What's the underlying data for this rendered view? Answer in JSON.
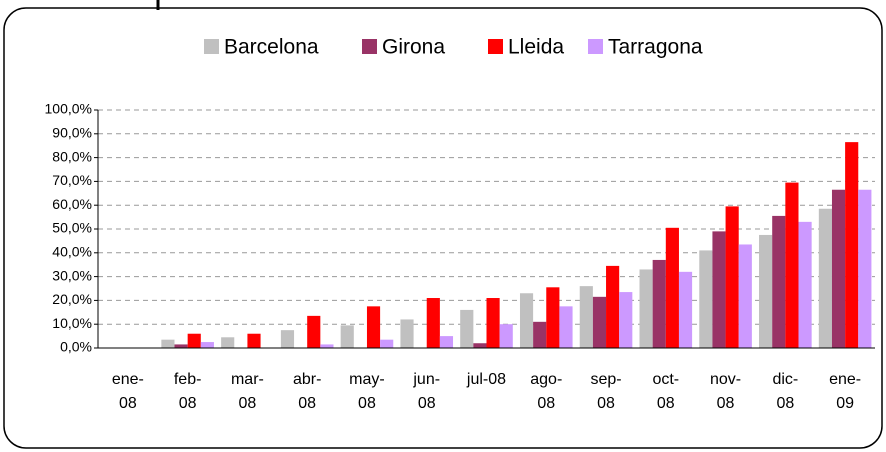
{
  "chart_data": {
    "type": "bar",
    "categories": [
      "ene-08",
      "feb-08",
      "mar-08",
      "abr-08",
      "may-08",
      "jun-08",
      "jul-08",
      "ago-08",
      "sep-08",
      "oct-08",
      "nov-08",
      "dic-08",
      "ene-09"
    ],
    "series": [
      {
        "name": "Barcelona",
        "color": "#c0c0c0",
        "values": [
          0,
          3.5,
          4.5,
          7.5,
          9.5,
          12,
          16,
          23,
          26,
          33,
          41,
          47.5,
          58.5
        ]
      },
      {
        "name": "Girona",
        "color": "#993366",
        "values": [
          0,
          1.5,
          0,
          0,
          0,
          0,
          2,
          11,
          21.5,
          37,
          49,
          55.5,
          66.5
        ]
      },
      {
        "name": "Lleida",
        "color": "#ff0000",
        "values": [
          0,
          6,
          6,
          13.5,
          17.5,
          21,
          21,
          25.5,
          34.5,
          50.5,
          59.5,
          69.5,
          86.5
        ]
      },
      {
        "name": "Tarragona",
        "color": "#cc99ff",
        "values": [
          0,
          2.5,
          0,
          1.5,
          3.5,
          5,
          10,
          17.5,
          23.5,
          32,
          43.5,
          53,
          66.5
        ]
      }
    ],
    "ylim": [
      0,
      100
    ],
    "yticks": [
      {
        "value": 0,
        "label": "0,0%"
      },
      {
        "value": 10,
        "label": "10,0%"
      },
      {
        "value": 20,
        "label": "20,0%"
      },
      {
        "value": 30,
        "label": "30,0%"
      },
      {
        "value": 40,
        "label": "40,0%"
      },
      {
        "value": 50,
        "label": "50,0%"
      },
      {
        "value": 60,
        "label": "60,0%"
      },
      {
        "value": 70,
        "label": "70,0%"
      },
      {
        "value": 80,
        "label": "80,0%"
      },
      {
        "value": 90,
        "label": "90,0%"
      },
      {
        "value": 100,
        "label": "100,0%"
      }
    ],
    "grid": true,
    "legend": "top"
  }
}
